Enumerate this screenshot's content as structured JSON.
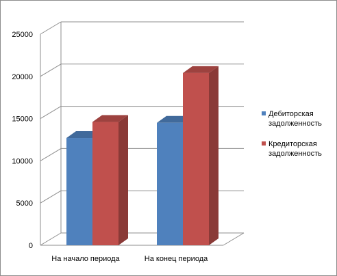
{
  "chart_data": {
    "type": "bar",
    "categories": [
      "На начало периода",
      "На конец периода"
    ],
    "series": [
      {
        "name": "Дебиторская задолженность",
        "values": [
          12700,
          14500
        ],
        "color": "#4f81bd"
      },
      {
        "name": "Кредиторская задолженность",
        "values": [
          14600,
          20400
        ],
        "color": "#c0504d"
      }
    ],
    "ylim": [
      0,
      25000
    ],
    "yticks": [
      0,
      5000,
      10000,
      15000,
      20000,
      25000
    ],
    "grid": true,
    "style": "3d",
    "legend": "right"
  }
}
